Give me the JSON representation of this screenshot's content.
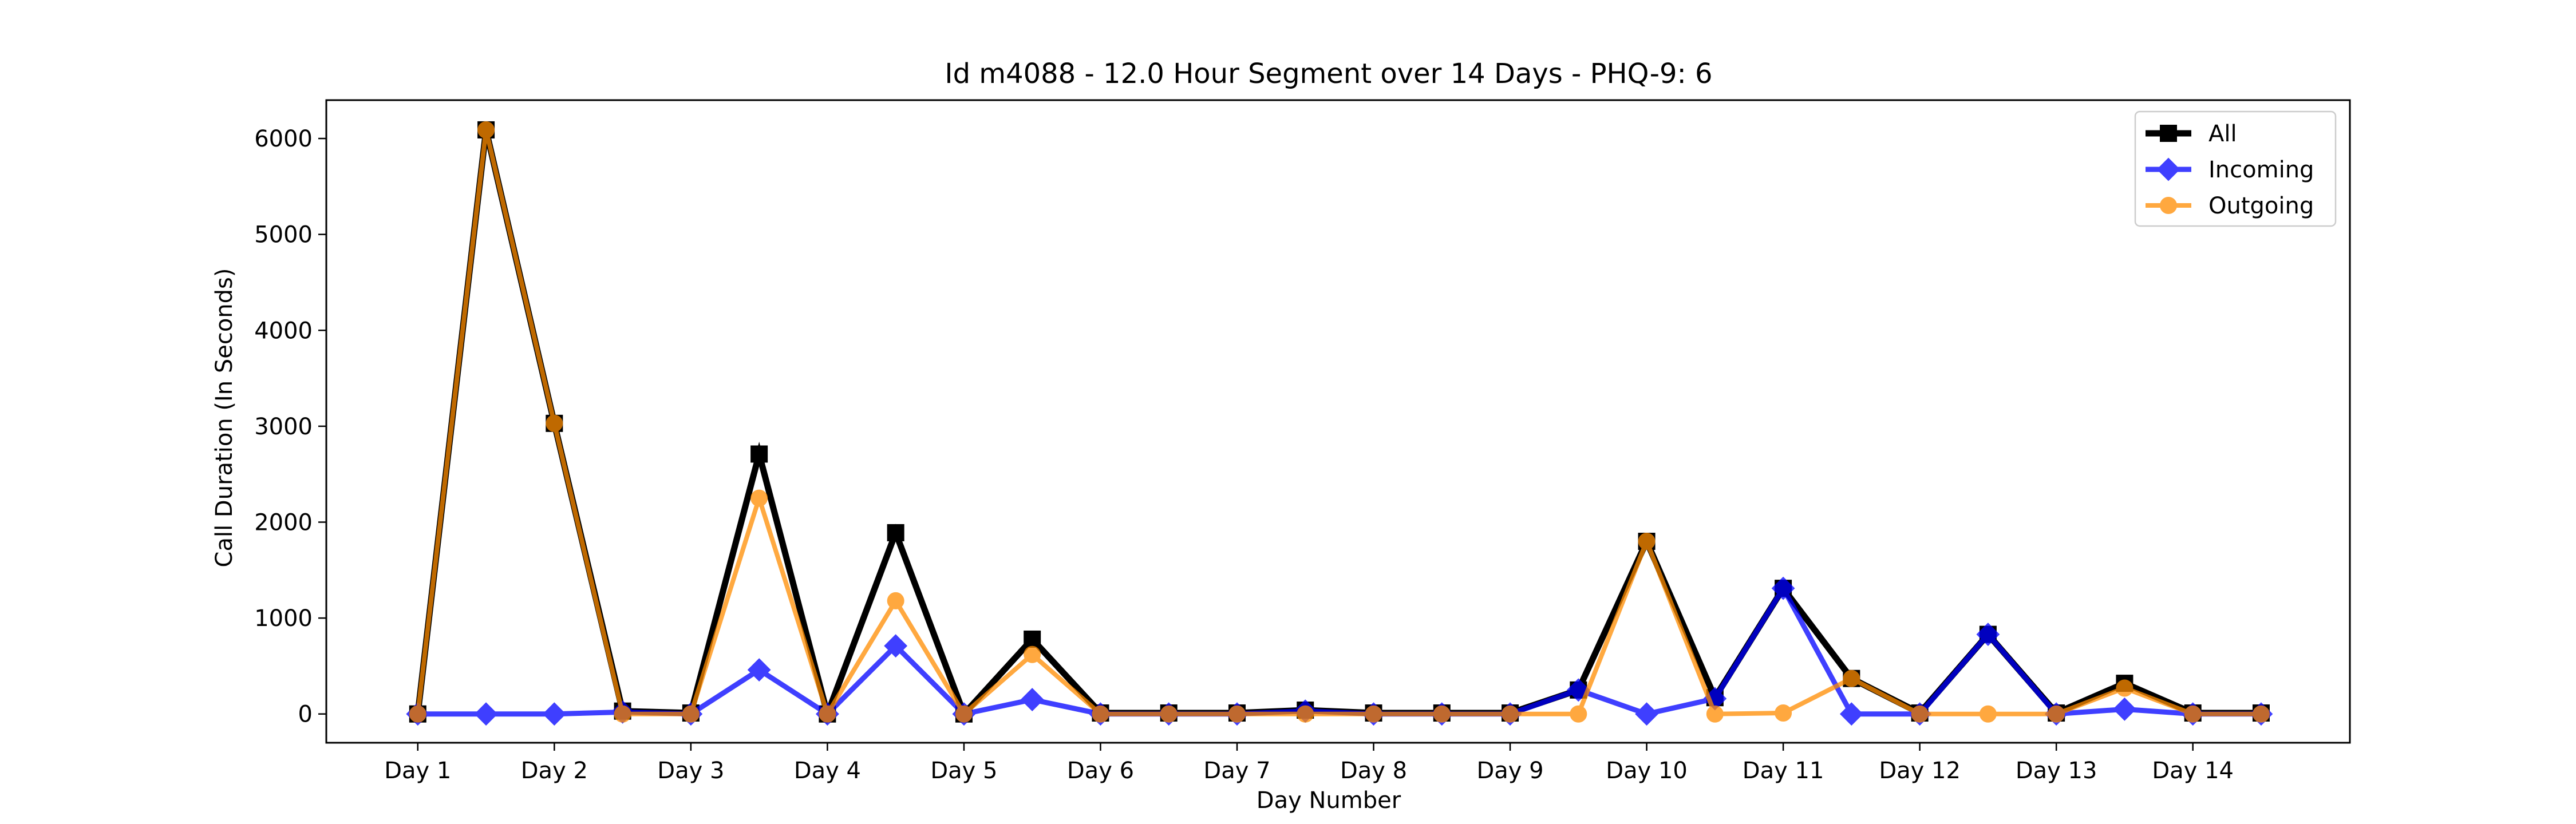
{
  "chart_data": {
    "type": "line",
    "title": "Id m4088 - 12.0 Hour Segment over 14 Days - PHQ-9: 6",
    "xlabel": "Day Number",
    "ylabel": "Call Duration (In Seconds)",
    "x_tick_labels": [
      "Day 1",
      "Day 2",
      "Day 3",
      "Day 4",
      "Day 5",
      "Day 6",
      "Day 7",
      "Day 8",
      "Day 9",
      "Day 10",
      "Day 11",
      "Day 12",
      "Day 13",
      "Day 14"
    ],
    "y_ticks": [
      0,
      1000,
      2000,
      3000,
      4000,
      5000,
      6000
    ],
    "xlim": [
      0.33,
      15.15
    ],
    "ylim": [
      -300,
      6400
    ],
    "x": [
      1,
      1.5,
      2,
      2.5,
      3,
      3.5,
      4,
      4.5,
      5,
      5.5,
      6,
      6.5,
      7,
      7.5,
      8,
      8.5,
      9,
      9.5,
      10,
      10.5,
      11,
      11.5,
      12,
      12.5,
      13,
      13.5,
      14,
      14.5
    ],
    "grid": false,
    "legend_position": "top-right",
    "series": [
      {
        "name": "All",
        "color": "#000000",
        "marker": "square",
        "values": [
          0,
          6090,
          3030,
          30,
          10,
          2710,
          0,
          1890,
          0,
          780,
          10,
          10,
          10,
          40,
          10,
          10,
          10,
          250,
          1800,
          170,
          1310,
          370,
          10,
          830,
          10,
          320,
          10,
          10
        ]
      },
      {
        "name": "Incoming",
        "color": "#0000ff",
        "marker": "diamond",
        "values": [
          0,
          0,
          0,
          20,
          0,
          460,
          0,
          710,
          0,
          150,
          0,
          0,
          0,
          30,
          0,
          0,
          0,
          250,
          0,
          160,
          1310,
          0,
          0,
          830,
          0,
          50,
          0,
          0
        ]
      },
      {
        "name": "Outgoing",
        "color": "#ff8c00",
        "marker": "circle",
        "values": [
          0,
          6090,
          3030,
          0,
          0,
          2250,
          0,
          1180,
          0,
          620,
          0,
          0,
          0,
          0,
          0,
          0,
          0,
          0,
          1800,
          0,
          10,
          370,
          0,
          0,
          0,
          270,
          0,
          0
        ]
      }
    ]
  }
}
